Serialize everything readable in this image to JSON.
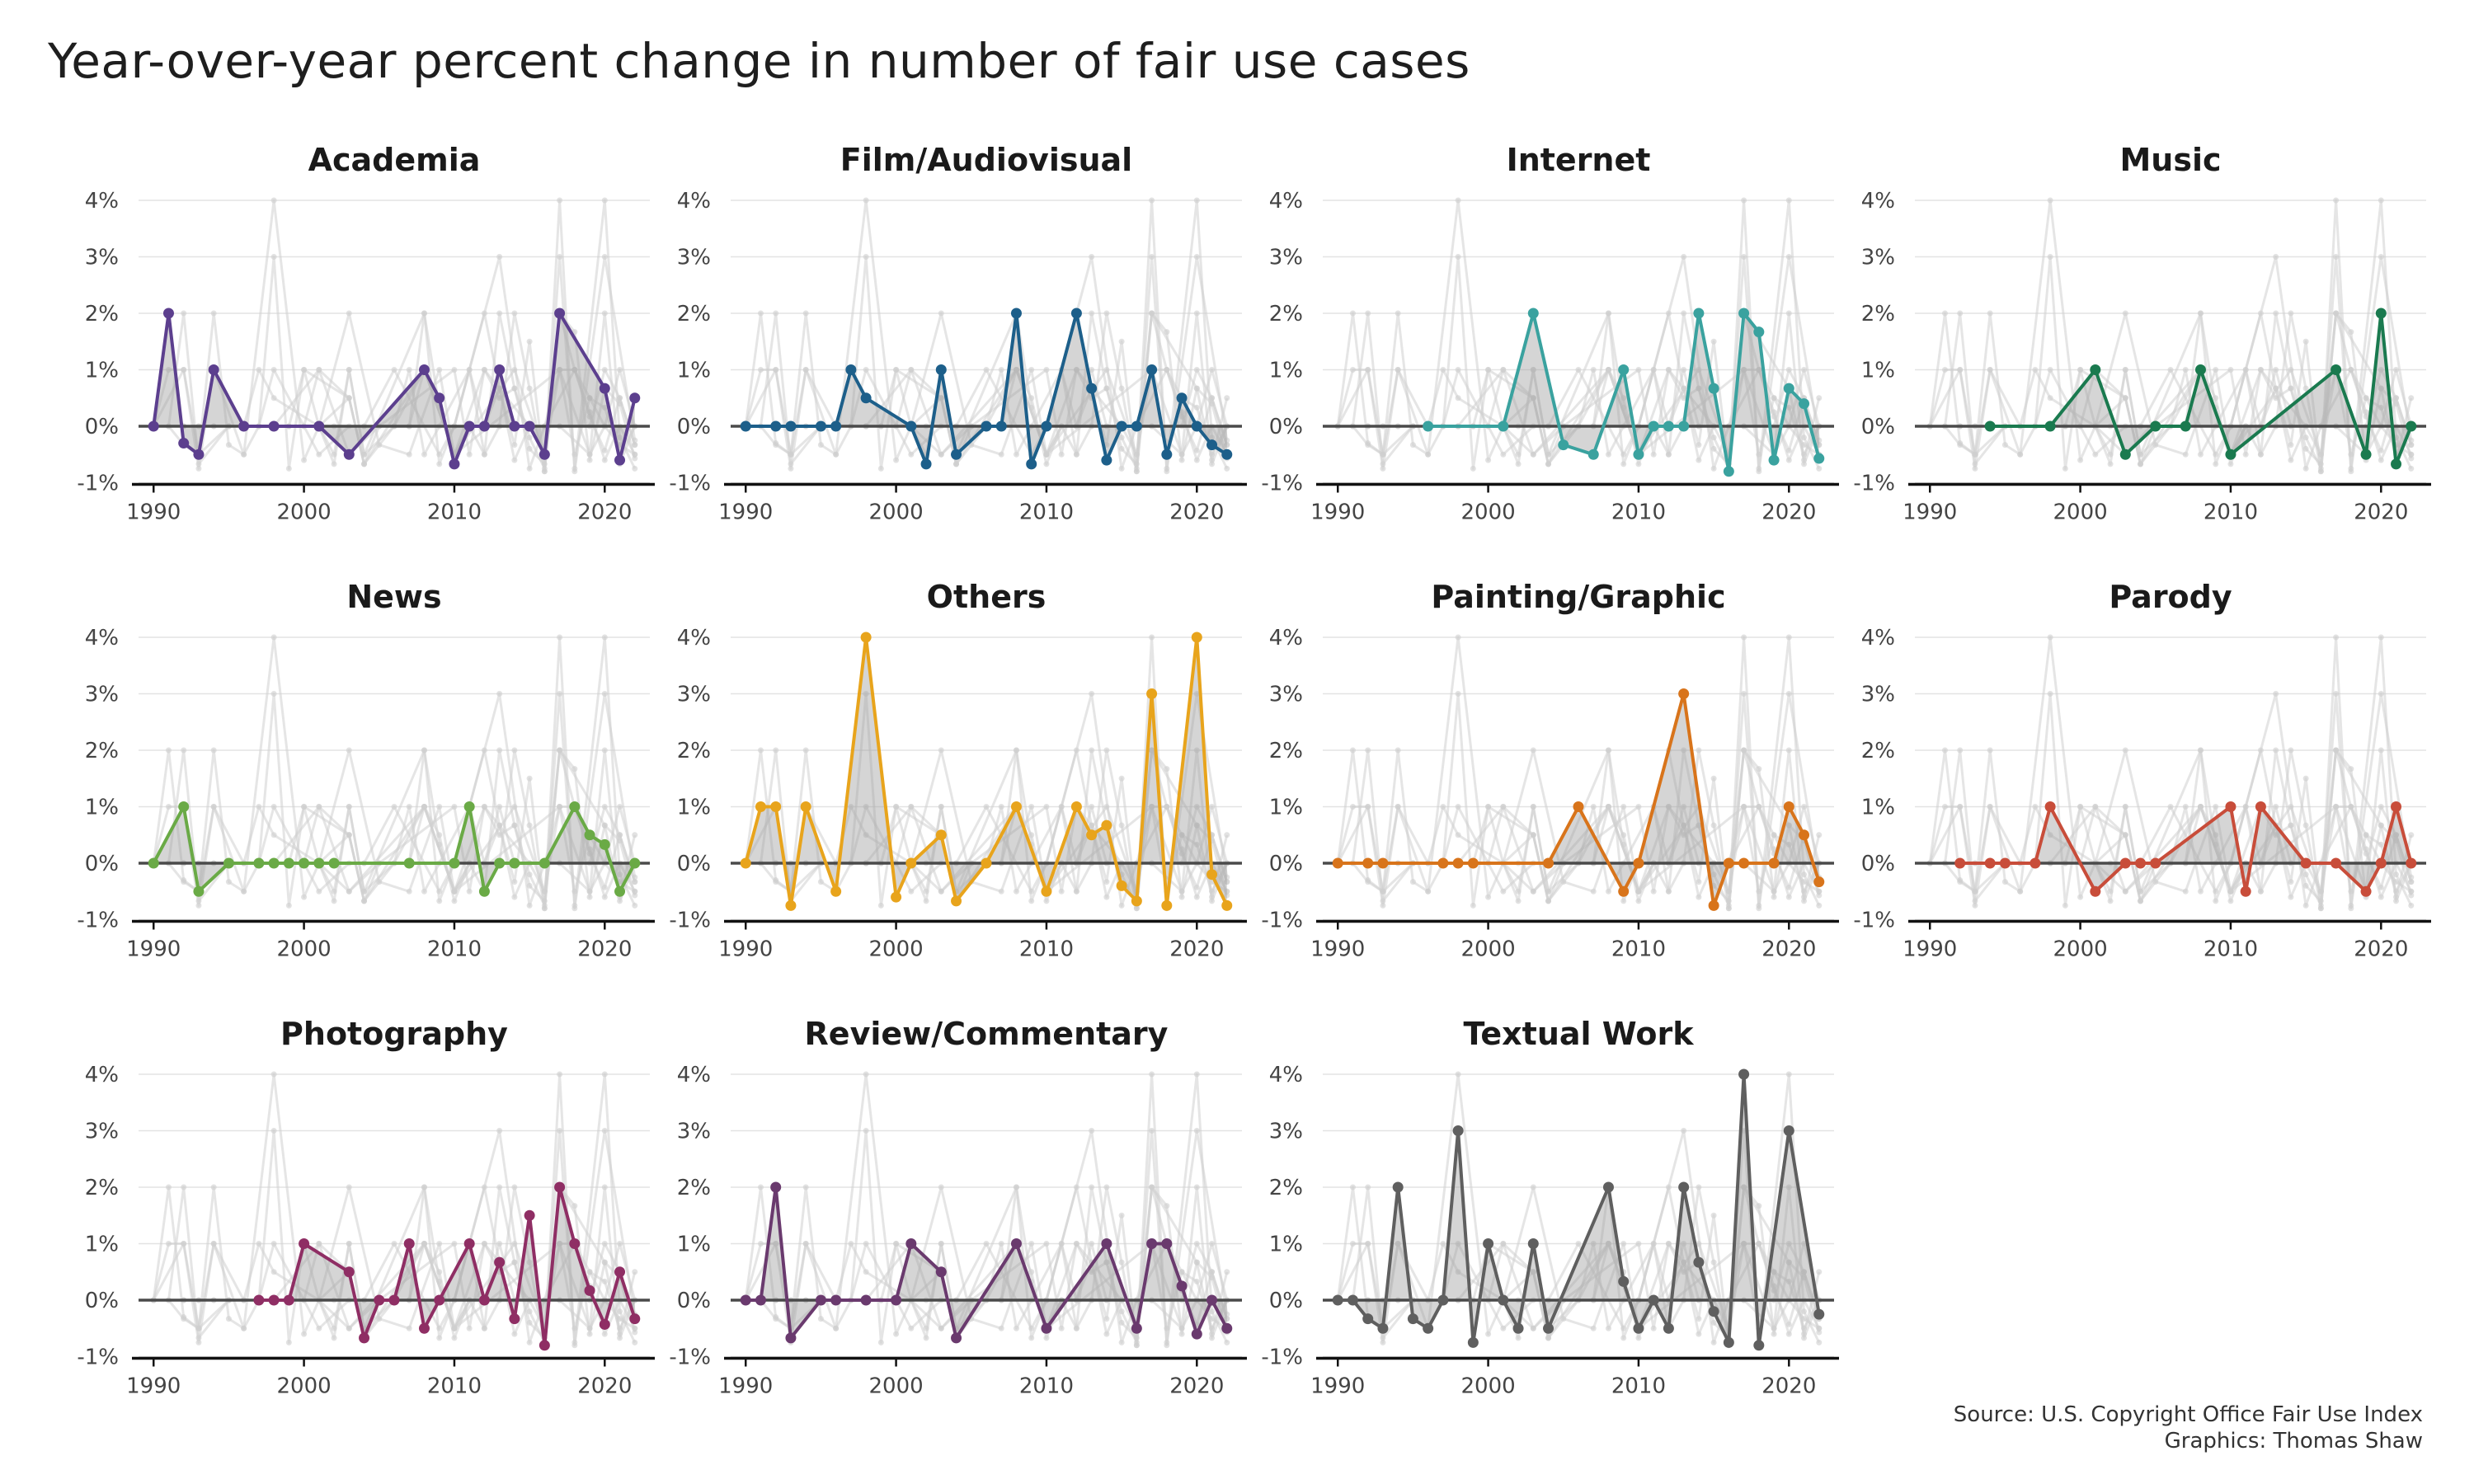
{
  "title": "Year-over-year percent change in number of fair use cases",
  "source": "Source: U.S. Copyright Office Fair Use Index",
  "credit": "Graphics: Thomas Shaw",
  "chart_data": {
    "type": "line",
    "layout": "small-multiples",
    "x_ticks": [
      1990,
      2000,
      2010,
      2020
    ],
    "xlim": [
      1989,
      2023
    ],
    "y_ticks": [
      -1,
      0,
      1,
      2,
      3,
      4
    ],
    "y_tick_labels": [
      "-1%",
      "0%",
      "1%",
      "2%",
      "3%",
      "4%"
    ],
    "ylim": [
      -1,
      4
    ],
    "grid": "horizontal",
    "background_series_color": "#cfcfcf",
    "series": [
      {
        "name": "Academia",
        "color": "#5c3f8e",
        "x": [
          1990,
          1991,
          1992,
          1993,
          1994,
          1996,
          1998,
          2001,
          2003,
          2008,
          2009,
          2010,
          2011,
          2012,
          2013,
          2014,
          2015,
          2016,
          2017,
          2020,
          2021,
          2022
        ],
        "y": [
          0,
          2,
          -0.3,
          -0.5,
          1,
          0,
          0,
          0,
          -0.5,
          1,
          0.5,
          -0.67,
          0,
          0,
          1,
          0,
          0,
          -0.5,
          2,
          0.67,
          -0.6,
          0.5
        ]
      },
      {
        "name": "Film/Audiovisual",
        "color": "#1d5f8a",
        "x": [
          1990,
          1992,
          1993,
          1995,
          1996,
          1997,
          1998,
          2001,
          2002,
          2003,
          2004,
          2006,
          2007,
          2008,
          2009,
          2010,
          2012,
          2013,
          2014,
          2015,
          2016,
          2017,
          2018,
          2019,
          2020,
          2021,
          2022
        ],
        "y": [
          0,
          0,
          0,
          0,
          0,
          1,
          0.5,
          0,
          -0.67,
          1,
          -0.5,
          0,
          0,
          2,
          -0.67,
          0,
          2,
          0.67,
          -0.6,
          0,
          0,
          1,
          -0.5,
          0.5,
          0,
          -0.33,
          -0.5
        ]
      },
      {
        "name": "Internet",
        "color": "#3aa29f",
        "x": [
          1996,
          2001,
          2003,
          2005,
          2007,
          2009,
          2010,
          2011,
          2012,
          2013,
          2014,
          2015,
          2016,
          2017,
          2018,
          2019,
          2020,
          2021,
          2022
        ],
        "y": [
          0,
          0,
          2,
          -0.33,
          -0.5,
          1,
          -0.5,
          0,
          0,
          0,
          2,
          0.67,
          -0.8,
          2,
          1.67,
          -0.6,
          0.67,
          0.4,
          -0.57
        ]
      },
      {
        "name": "Music",
        "color": "#1a7a4f",
        "x": [
          1994,
          1998,
          2001,
          2003,
          2005,
          2007,
          2008,
          2010,
          2017,
          2019,
          2020,
          2021,
          2022
        ],
        "y": [
          0,
          0,
          1,
          -0.5,
          0,
          0,
          1,
          -0.5,
          1,
          -0.5,
          2,
          -0.67,
          0
        ]
      },
      {
        "name": "News",
        "color": "#6aaa46",
        "x": [
          1990,
          1992,
          1993,
          1995,
          1997,
          1998,
          1999,
          2000,
          2001,
          2002,
          2007,
          2010,
          2011,
          2012,
          2013,
          2014,
          2016,
          2018,
          2019,
          2020,
          2021,
          2022
        ],
        "y": [
          0,
          1,
          -0.5,
          0,
          0,
          0,
          0,
          0,
          0,
          0,
          0,
          0,
          1,
          -0.5,
          0,
          0,
          0,
          1,
          0.5,
          0.33,
          -0.5,
          0
        ]
      },
      {
        "name": "Others",
        "color": "#e8a41c",
        "x": [
          1990,
          1991,
          1992,
          1993,
          1994,
          1996,
          1998,
          2000,
          2001,
          2003,
          2004,
          2006,
          2008,
          2010,
          2012,
          2013,
          2014,
          2015,
          2016,
          2017,
          2018,
          2020,
          2021,
          2022
        ],
        "y": [
          0,
          1,
          1,
          -0.75,
          1,
          -0.5,
          4,
          -0.6,
          0,
          0.5,
          -0.67,
          0,
          1,
          -0.5,
          1,
          0.5,
          0.67,
          -0.4,
          -0.67,
          3,
          -0.75,
          4,
          -0.2,
          -0.75
        ]
      },
      {
        "name": "Painting/Graphic",
        "color": "#d8741b",
        "x": [
          1990,
          1992,
          1993,
          1997,
          1998,
          1999,
          2004,
          2006,
          2009,
          2010,
          2013,
          2015,
          2016,
          2017,
          2019,
          2020,
          2021,
          2022
        ],
        "y": [
          0,
          0,
          0,
          0,
          0,
          0,
          0,
          1,
          -0.5,
          0,
          3,
          -0.75,
          0,
          0,
          0,
          1,
          0.5,
          -0.33
        ]
      },
      {
        "name": "Parody",
        "color": "#c84d3a",
        "x": [
          1992,
          1994,
          1995,
          1997,
          1998,
          2001,
          2003,
          2004,
          2005,
          2010,
          2011,
          2012,
          2015,
          2017,
          2019,
          2020,
          2021,
          2022
        ],
        "y": [
          0,
          0,
          0,
          0,
          1,
          -0.5,
          0,
          0,
          0,
          1,
          -0.5,
          1,
          0,
          0,
          -0.5,
          0,
          1,
          0
        ]
      },
      {
        "name": "Photography",
        "color": "#8f2e64",
        "x": [
          1997,
          1998,
          1999,
          2000,
          2003,
          2004,
          2005,
          2006,
          2007,
          2008,
          2009,
          2011,
          2012,
          2013,
          2014,
          2015,
          2016,
          2017,
          2018,
          2019,
          2020,
          2021,
          2022
        ],
        "y": [
          0,
          0,
          0,
          1,
          0.5,
          -0.67,
          0,
          0,
          1,
          -0.5,
          0,
          1,
          0,
          0.67,
          -0.33,
          1.5,
          -0.8,
          2,
          1,
          0.17,
          -0.43,
          0.5,
          -0.33
        ]
      },
      {
        "name": "Review/Commentary",
        "color": "#6a3a6e",
        "x": [
          1990,
          1991,
          1992,
          1993,
          1995,
          1996,
          1998,
          2000,
          2001,
          2003,
          2004,
          2008,
          2010,
          2014,
          2016,
          2017,
          2018,
          2019,
          2020,
          2021,
          2022
        ],
        "y": [
          0,
          0,
          2,
          -0.67,
          0,
          0,
          0,
          0,
          1,
          0.5,
          -0.67,
          1,
          -0.5,
          1,
          -0.5,
          1,
          1,
          0.25,
          -0.6,
          0,
          -0.5
        ]
      },
      {
        "name": "Textual Work",
        "color": "#5f5f5f",
        "x": [
          1990,
          1991,
          1992,
          1993,
          1994,
          1995,
          1996,
          1997,
          1998,
          1999,
          2000,
          2001,
          2002,
          2003,
          2004,
          2008,
          2009,
          2010,
          2011,
          2012,
          2013,
          2014,
          2015,
          2016,
          2017,
          2018,
          2020,
          2022
        ],
        "y": [
          0,
          0,
          -0.33,
          -0.5,
          2,
          -0.33,
          -0.5,
          0,
          3,
          -0.75,
          1,
          0,
          -0.5,
          1,
          -0.5,
          2,
          0.33,
          -0.5,
          0,
          -0.5,
          2,
          0.67,
          -0.2,
          -0.75,
          4,
          -0.8,
          3,
          -0.25
        ]
      }
    ]
  }
}
